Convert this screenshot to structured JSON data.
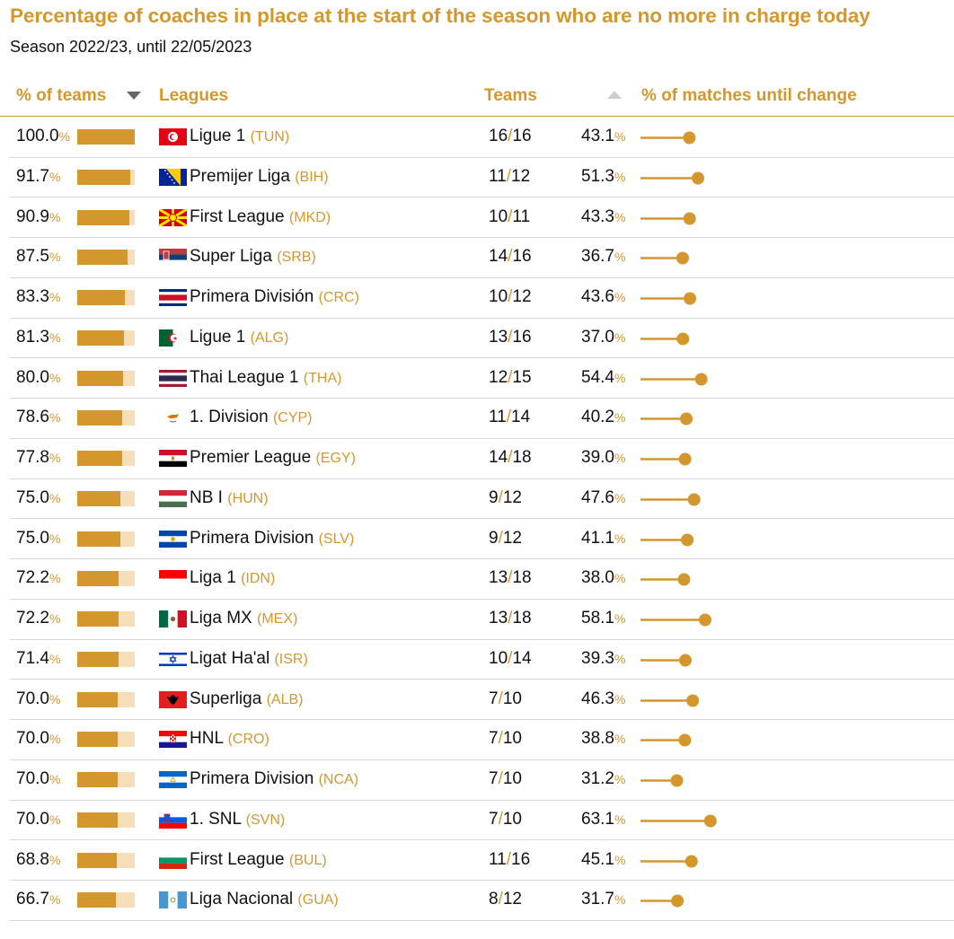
{
  "title": "Percentage of coaches in place at the start of the season who are no more in charge today",
  "subtitle": "Season 2022/23, until 22/05/2023",
  "headers": {
    "pct_teams": "% of teams",
    "leagues": "Leagues",
    "teams": "Teams",
    "pct_matches": "% of matches until change"
  },
  "units": {
    "percent": "%",
    "teams_separator": "/"
  },
  "icons": {
    "sort_desc": "triangle-down",
    "sort_asc": "triangle-up"
  },
  "colors": {
    "accent": "#d4972e",
    "bar_track": "#f5deb8",
    "rule": "#d8d8d8"
  },
  "chart_data": {
    "type": "table",
    "rows": [
      {
        "pct_teams": "100.0",
        "league": "Ligue 1",
        "code": "(TUN)",
        "changed": "16",
        "total": "16",
        "pct_matches": "43.1",
        "flag": "tunisia"
      },
      {
        "pct_teams": "91.7",
        "league": "Premijer Liga",
        "code": "(BIH)",
        "changed": "11",
        "total": "12",
        "pct_matches": "51.3",
        "flag": "bosnia"
      },
      {
        "pct_teams": "90.9",
        "league": "First League",
        "code": "(MKD)",
        "changed": "10",
        "total": "11",
        "pct_matches": "43.3",
        "flag": "macedonia"
      },
      {
        "pct_teams": "87.5",
        "league": "Super Liga",
        "code": "(SRB)",
        "changed": "14",
        "total": "16",
        "pct_matches": "36.7",
        "flag": "serbia"
      },
      {
        "pct_teams": "83.3",
        "league": "Primera División",
        "code": "(CRC)",
        "changed": "10",
        "total": "12",
        "pct_matches": "43.6",
        "flag": "costarica"
      },
      {
        "pct_teams": "81.3",
        "league": "Ligue 1",
        "code": "(ALG)",
        "changed": "13",
        "total": "16",
        "pct_matches": "37.0",
        "flag": "algeria"
      },
      {
        "pct_teams": "80.0",
        "league": "Thai League 1",
        "code": "(THA)",
        "changed": "12",
        "total": "15",
        "pct_matches": "54.4",
        "flag": "thailand"
      },
      {
        "pct_teams": "78.6",
        "league": "1. Division",
        "code": "(CYP)",
        "changed": "11",
        "total": "14",
        "pct_matches": "40.2",
        "flag": "cyprus"
      },
      {
        "pct_teams": "77.8",
        "league": "Premier League",
        "code": "(EGY)",
        "changed": "14",
        "total": "18",
        "pct_matches": "39.0",
        "flag": "egypt"
      },
      {
        "pct_teams": "75.0",
        "league": "NB I",
        "code": "(HUN)",
        "changed": "9",
        "total": "12",
        "pct_matches": "47.6",
        "flag": "hungary"
      },
      {
        "pct_teams": "75.0",
        "league": "Primera Division",
        "code": "(SLV)",
        "changed": "9",
        "total": "12",
        "pct_matches": "41.1",
        "flag": "elsalvador"
      },
      {
        "pct_teams": "72.2",
        "league": "Liga 1",
        "code": "(IDN)",
        "changed": "13",
        "total": "18",
        "pct_matches": "38.0",
        "flag": "indonesia"
      },
      {
        "pct_teams": "72.2",
        "league": "Liga MX",
        "code": "(MEX)",
        "changed": "13",
        "total": "18",
        "pct_matches": "58.1",
        "flag": "mexico"
      },
      {
        "pct_teams": "71.4",
        "league": "Ligat Ha'al",
        "code": "(ISR)",
        "changed": "10",
        "total": "14",
        "pct_matches": "39.3",
        "flag": "israel"
      },
      {
        "pct_teams": "70.0",
        "league": "Superliga",
        "code": "(ALB)",
        "changed": "7",
        "total": "10",
        "pct_matches": "46.3",
        "flag": "albania"
      },
      {
        "pct_teams": "70.0",
        "league": "HNL",
        "code": "(CRO)",
        "changed": "7",
        "total": "10",
        "pct_matches": "38.8",
        "flag": "croatia"
      },
      {
        "pct_teams": "70.0",
        "league": "Primera Division",
        "code": "(NCA)",
        "changed": "7",
        "total": "10",
        "pct_matches": "31.2",
        "flag": "nicaragua"
      },
      {
        "pct_teams": "70.0",
        "league": "1. SNL",
        "code": "(SVN)",
        "changed": "7",
        "total": "10",
        "pct_matches": "63.1",
        "flag": "slovenia"
      },
      {
        "pct_teams": "68.8",
        "league": "First League",
        "code": "(BUL)",
        "changed": "11",
        "total": "16",
        "pct_matches": "45.1",
        "flag": "bulgaria"
      },
      {
        "pct_teams": "66.7",
        "league": "Liga Nacional",
        "code": "(GUA)",
        "changed": "8",
        "total": "12",
        "pct_matches": "31.7",
        "flag": "guatemala"
      }
    ]
  }
}
